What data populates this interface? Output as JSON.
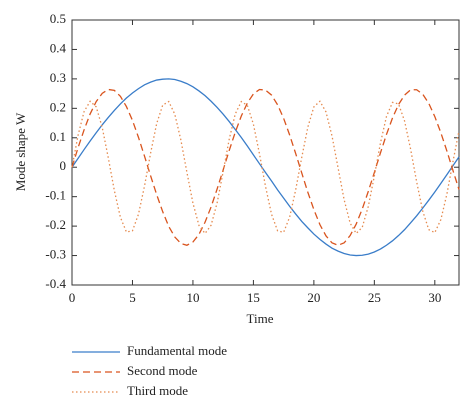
{
  "chart_data": {
    "type": "line",
    "xlabel": "Time",
    "ylabel": "Mode shape W",
    "xlim": [
      0,
      32
    ],
    "ylim": [
      -0.4,
      0.5
    ],
    "xticks": [
      0,
      5,
      10,
      15,
      20,
      25,
      30
    ],
    "yticks": [
      -0.4,
      -0.3,
      -0.2,
      -0.1,
      0,
      0.1,
      0.2,
      0.3,
      0.4,
      0.5
    ],
    "legend": "below",
    "x": [
      0,
      0.5,
      1,
      1.5,
      2,
      2.5,
      3,
      3.5,
      4,
      4.5,
      5,
      5.5,
      6,
      6.5,
      7,
      7.5,
      8,
      8.5,
      9,
      9.5,
      10,
      10.5,
      11,
      11.5,
      12,
      12.5,
      13,
      13.5,
      14,
      14.5,
      15,
      15.5,
      16,
      16.5,
      17,
      17.5,
      18,
      18.5,
      19,
      19.5,
      20,
      20.5,
      21,
      21.5,
      22,
      22.5,
      23,
      23.5,
      24,
      24.5,
      25,
      25.5,
      26,
      26.5,
      27,
      27.5,
      28,
      28.5,
      29,
      29.5,
      30,
      30.5,
      31,
      31.5,
      32
    ],
    "series": [
      {
        "name": "Fundamental mode",
        "color": "#3a7dc9",
        "linestyle": "solid",
        "values": [
          0,
          0.03,
          0.06,
          0.089,
          0.117,
          0.144,
          0.169,
          0.193,
          0.215,
          0.235,
          0.252,
          0.267,
          0.28,
          0.289,
          0.296,
          0.299,
          0.3,
          0.298,
          0.292,
          0.284,
          0.273,
          0.259,
          0.243,
          0.224,
          0.203,
          0.18,
          0.155,
          0.128,
          0.101,
          0.072,
          0.042,
          0.012,
          -0.018,
          -0.047,
          -0.077,
          -0.105,
          -0.133,
          -0.159,
          -0.184,
          -0.206,
          -0.227,
          -0.245,
          -0.261,
          -0.275,
          -0.285,
          -0.293,
          -0.298,
          -0.3,
          -0.299,
          -0.295,
          -0.288,
          -0.278,
          -0.265,
          -0.25,
          -0.232,
          -0.212,
          -0.189,
          -0.165,
          -0.139,
          -0.112,
          -0.084,
          -0.055,
          -0.025,
          0.005,
          0.035
        ]
      },
      {
        "name": "Second mode",
        "color": "#d9541e",
        "linestyle": "dashed",
        "values": [
          0,
          0.066,
          0.127,
          0.181,
          0.223,
          0.251,
          0.264,
          0.261,
          0.241,
          0.206,
          0.159,
          0.101,
          0.037,
          -0.029,
          -0.093,
          -0.151,
          -0.201,
          -0.237,
          -0.259,
          -0.265,
          -0.254,
          -0.228,
          -0.187,
          -0.135,
          -0.074,
          -0.009,
          0.057,
          0.119,
          0.174,
          0.218,
          0.249,
          0.264,
          0.262,
          0.245,
          0.212,
          0.166,
          0.109,
          0.046,
          -0.02,
          -0.085,
          -0.144,
          -0.195,
          -0.233,
          -0.257,
          -0.265,
          -0.257,
          -0.232,
          -0.193,
          -0.142,
          -0.082,
          -0.018,
          0.048,
          0.111,
          0.167,
          0.213,
          0.245,
          0.263,
          0.263,
          0.248,
          0.217,
          0.172,
          0.117,
          0.055,
          -0.011,
          -0.076
        ]
      },
      {
        "name": "Third mode",
        "color": "#e58a4e",
        "linestyle": "dotted",
        "values": [
          0,
          0.108,
          0.189,
          0.224,
          0.205,
          0.135,
          0.032,
          -0.079,
          -0.17,
          -0.22,
          -0.216,
          -0.159,
          -0.063,
          0.048,
          0.148,
          0.211,
          0.223,
          0.18,
          0.093,
          -0.017,
          -0.122,
          -0.198,
          -0.225,
          -0.197,
          -0.121,
          -0.015,
          0.095,
          0.181,
          0.223,
          0.21,
          0.146,
          0.046,
          -0.065,
          -0.16,
          -0.216,
          -0.221,
          -0.169,
          -0.076,
          0.034,
          0.136,
          0.205,
          0.224,
          0.188,
          0.106,
          -0.002,
          -0.11,
          -0.19,
          -0.225,
          -0.204,
          -0.133,
          -0.03,
          0.081,
          0.172,
          0.22,
          0.215,
          0.157,
          0.061,
          -0.05,
          -0.149,
          -0.212,
          -0.222,
          -0.178,
          -0.091,
          0.019,
          0.124
        ]
      }
    ]
  }
}
